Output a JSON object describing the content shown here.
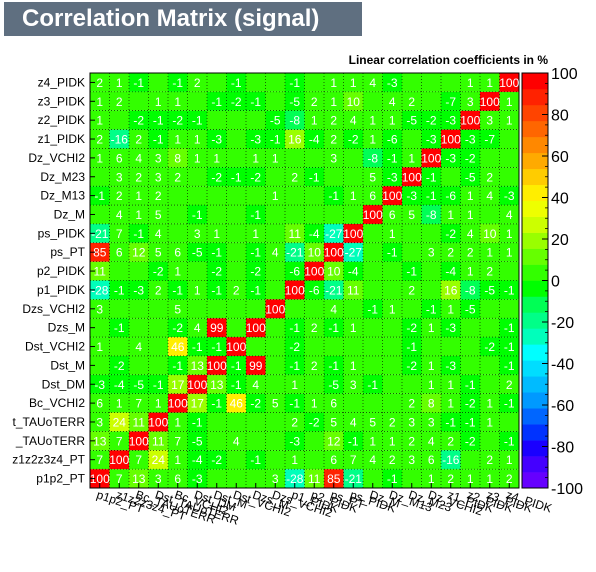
{
  "title": "Correlation Matrix (signal)",
  "subtitle": "Linear correlation coefficients in %",
  "chart_data": {
    "type": "heatmap",
    "labels": [
      "p1p2_PT",
      "z1z2z3z4_PT",
      "Bc_TAUoTERR",
      "Dst_TAUoTERR",
      "Bc_VCHI2",
      "Dst_DM",
      "Dst_M",
      "Dst_VCHI2",
      "Dzs_M",
      "Dzs_VCHI2",
      "p1_PIDK",
      "p2_PIDK",
      "ps_PT",
      "ps_PIDK",
      "Dz_M",
      "Dz_M13",
      "Dz_M23",
      "Dz_VCHI2",
      "z1_PIDK",
      "z2_PIDK",
      "z3_PIDK",
      "z4_PIDK"
    ],
    "row_labels": [
      "p1p2_PT",
      "z1z2z3z4_PT",
      "Bc_TAUoTERR",
      "Dst_TAUoTERR",
      "Bc_VCHI2",
      "Dst_DM",
      "Dst_M",
      "Dst_VCHI2",
      "Dzs_M",
      "Dzs_VCHI2",
      "p1_PIDK",
      "p2_PIDK",
      "ps_PT",
      "ps_PIDK",
      "Dz_M",
      "Dz_M13",
      "Dz_M23",
      "Dz_VCHI2",
      "z1_PIDK",
      "z2_PIDK",
      "z3_PIDK",
      "z4_PIDK"
    ],
    "row_labels_visible": [
      "p1p2_PT",
      "z1z2z3z4_PT",
      "_TAUoTERR",
      "t_TAUoTERR",
      "Bc_VCHI2",
      "Dst_DM",
      "Dst_M",
      "Dst_VCHI2",
      "Dzs_M",
      "Dzs_VCHI2",
      "p1_PIDK",
      "p2_PIDK",
      "ps_PT",
      "ps_PIDK",
      "Dz_M",
      "Dz_M13",
      "Dz_M23",
      "Dz_VCHI2",
      "z1_PIDK",
      "z2_PIDK",
      "z3_PIDK",
      "z4_PIDK"
    ],
    "values": [
      [
        100,
        7,
        13,
        3,
        6,
        -3,
        0,
        0,
        0,
        3,
        -28,
        11,
        85,
        -21,
        0,
        -1,
        0,
        1,
        2,
        1,
        1,
        2
      ],
      [
        7,
        100,
        7,
        24,
        1,
        -4,
        -2,
        0,
        -1,
        0,
        1,
        0,
        6,
        7,
        4,
        2,
        3,
        6,
        -16,
        0,
        2,
        1
      ],
      [
        13,
        7,
        100,
        11,
        7,
        -5,
        0,
        4,
        0,
        0,
        -3,
        0,
        12,
        -1,
        1,
        1,
        2,
        4,
        2,
        -2,
        0,
        -1
      ],
      [
        3,
        24,
        11,
        100,
        1,
        -1,
        0,
        0,
        0,
        0,
        2,
        -2,
        5,
        4,
        5,
        2,
        3,
        3,
        -1,
        -1,
        1,
        0
      ],
      [
        6,
        1,
        7,
        1,
        100,
        17,
        -1,
        46,
        -2,
        5,
        -1,
        1,
        6,
        0,
        0,
        0,
        2,
        8,
        1,
        -2,
        1,
        -1
      ],
      [
        -3,
        -4,
        -5,
        -1,
        17,
        100,
        13,
        -1,
        4,
        0,
        1,
        0,
        -5,
        3,
        -1,
        0,
        0,
        1,
        1,
        -1,
        0,
        2
      ],
      [
        0,
        -2,
        0,
        0,
        -1,
        13,
        100,
        -1,
        99,
        0,
        -1,
        2,
        -1,
        1,
        0,
        0,
        -2,
        1,
        -3,
        0,
        0,
        -1
      ],
      [
        1,
        0,
        4,
        0,
        46,
        -1,
        -1,
        100,
        0,
        0,
        -2,
        0,
        0,
        0,
        0,
        0,
        -1,
        0,
        0,
        0,
        -2,
        -1
      ],
      [
        0,
        -1,
        0,
        0,
        -2,
        4,
        99,
        0,
        100,
        0,
        -1,
        2,
        -1,
        1,
        0,
        0,
        -2,
        1,
        -3,
        0,
        0,
        -1
      ],
      [
        3,
        0,
        0,
        0,
        5,
        0,
        0,
        0,
        0,
        100,
        0,
        0,
        4,
        0,
        -1,
        1,
        0,
        -1,
        1,
        -5,
        0,
        0
      ],
      [
        -28,
        -1,
        -3,
        2,
        -1,
        1,
        -1,
        2,
        -1,
        0,
        100,
        -6,
        -21,
        11,
        0,
        0,
        2,
        0,
        16,
        -8,
        -5,
        -1
      ],
      [
        11,
        0,
        0,
        -2,
        1,
        0,
        -2,
        0,
        -2,
        0,
        -6,
        100,
        10,
        -4,
        0,
        0,
        -1,
        0,
        -4,
        1,
        2,
        0
      ],
      [
        85,
        6,
        12,
        5,
        6,
        -5,
        -1,
        0,
        -1,
        4,
        -21,
        10,
        100,
        -27,
        0,
        -1,
        0,
        3,
        2,
        2,
        1,
        1
      ],
      [
        -21,
        7,
        -1,
        4,
        0,
        3,
        1,
        0,
        1,
        0,
        11,
        -4,
        -27,
        100,
        0,
        1,
        0,
        0,
        -2,
        4,
        10,
        1
      ],
      [
        0,
        4,
        1,
        5,
        0,
        -1,
        0,
        0,
        -1,
        0,
        0,
        0,
        0,
        0,
        100,
        6,
        5,
        -8,
        1,
        1,
        0,
        4
      ],
      [
        -1,
        2,
        1,
        2,
        0,
        0,
        0,
        0,
        0,
        1,
        0,
        0,
        -1,
        1,
        6,
        100,
        -3,
        -1,
        -6,
        1,
        4,
        -3
      ],
      [
        0,
        3,
        2,
        3,
        2,
        0,
        -2,
        -1,
        -2,
        0,
        2,
        -1,
        0,
        0,
        5,
        -3,
        100,
        -1,
        0,
        -5,
        2,
        0
      ],
      [
        1,
        6,
        4,
        3,
        8,
        1,
        1,
        0,
        1,
        1,
        0,
        0,
        3,
        0,
        -8,
        -1,
        1,
        100,
        -3,
        -2,
        0,
        0
      ],
      [
        2,
        -16,
        2,
        -1,
        1,
        1,
        -3,
        0,
        -3,
        -1,
        16,
        -4,
        2,
        -2,
        1,
        -6,
        0,
        -3,
        100,
        -3,
        -7,
        0
      ],
      [
        1,
        0,
        -2,
        -1,
        -2,
        -1,
        0,
        0,
        0,
        -5,
        -8,
        1,
        2,
        4,
        1,
        1,
        -5,
        -2,
        -3,
        100,
        3,
        1
      ],
      [
        1,
        2,
        0,
        1,
        1,
        0,
        -1,
        -2,
        -1,
        0,
        -5,
        2,
        1,
        10,
        0,
        4,
        2,
        0,
        -7,
        3,
        100,
        1
      ],
      [
        2,
        1,
        -1,
        0,
        -1,
        2,
        0,
        -1,
        0,
        0,
        -1,
        0,
        1,
        1,
        4,
        -3,
        0,
        0,
        0,
        1,
        1,
        100
      ]
    ],
    "zlim": [
      -100,
      100
    ],
    "colorbar_ticks": [
      -100,
      -80,
      -60,
      -40,
      -20,
      0,
      20,
      40,
      60,
      80,
      100
    ],
    "palette_colors": [
      "#6600ff",
      "#4400ff",
      "#1a00ff",
      "#0033ff",
      "#0066ff",
      "#0099ff",
      "#00bbff",
      "#00ddff",
      "#00ffff",
      "#00ffbb",
      "#00ff88",
      "#00ff55",
      "#00ff00",
      "#33ff00",
      "#66ff00",
      "#99ff00",
      "#ccff00",
      "#eeff00",
      "#ffee00",
      "#ffcc00",
      "#ffaa00",
      "#ff8800",
      "#ff6600",
      "#ff4400",
      "#ff2200",
      "#ff0000"
    ],
    "grid": true,
    "cell_text_color": "#ffffff",
    "axis_label_color": "#000000"
  }
}
